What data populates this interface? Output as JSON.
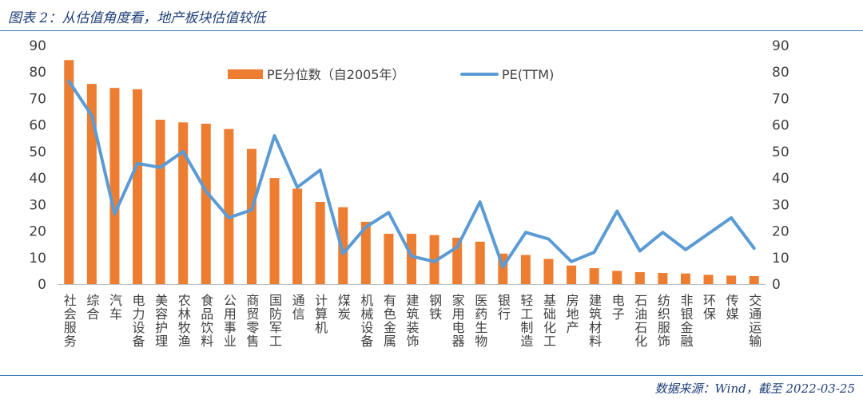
{
  "figure_title": "图表 2：从估值角度看，地产板块估值较低",
  "source_note": "数据来源：Wind，截至 2022-03-25",
  "colors": {
    "bar": "#ed7d31",
    "line": "#5b9bd5",
    "axis_text": "#404040",
    "accent": "#3c78b4"
  },
  "chart_data": {
    "type": "bar",
    "categories": [
      "社会服务",
      "综合",
      "汽车",
      "电力设备",
      "美容护理",
      "农林牧渔",
      "食品饮料",
      "公用事业",
      "商贸零售",
      "国防军工",
      "通信",
      "计算机",
      "煤炭",
      "机械设备",
      "有色金属",
      "建筑装饰",
      "钢铁",
      "家用电器",
      "医药生物",
      "银行",
      "轻工制造",
      "基础化工",
      "房地产",
      "建筑材料",
      "电子",
      "石油石化",
      "纺织服饰",
      "非银金融",
      "环保",
      "传媒",
      "交通运输"
    ],
    "series": [
      {
        "name": "PE分位数（自2005年）",
        "type": "bar",
        "axis": "left",
        "values": [
          84.5,
          75.5,
          74,
          73.5,
          62,
          61,
          60.5,
          58.5,
          51,
          40,
          36,
          31,
          29,
          23.5,
          19,
          19,
          18.5,
          17.5,
          16,
          11.5,
          11,
          9.5,
          7,
          6,
          5,
          4.5,
          4.2,
          4,
          3.5,
          3.2,
          3
        ]
      },
      {
        "name": "PE(TTM)",
        "type": "line",
        "axis": "right",
        "values": [
          76.5,
          63.5,
          26.5,
          45.5,
          44,
          50,
          35,
          25,
          28,
          56,
          36.5,
          43,
          11.5,
          21.5,
          27,
          10.5,
          8.5,
          14,
          31,
          6.5,
          19.5,
          17,
          8.5,
          12,
          27.5,
          12.5,
          19.5,
          13,
          19,
          25,
          13.5
        ]
      }
    ],
    "yaxis_left": {
      "min": 0,
      "max": 90,
      "ticks": [
        0,
        10,
        20,
        30,
        40,
        50,
        60,
        70,
        80,
        90
      ]
    },
    "yaxis_right": {
      "min": 0,
      "max": 90,
      "ticks": [
        0,
        10,
        20,
        30,
        40,
        50,
        60,
        70,
        80,
        90
      ]
    },
    "legend": {
      "position": "top-center"
    },
    "grid": false
  }
}
